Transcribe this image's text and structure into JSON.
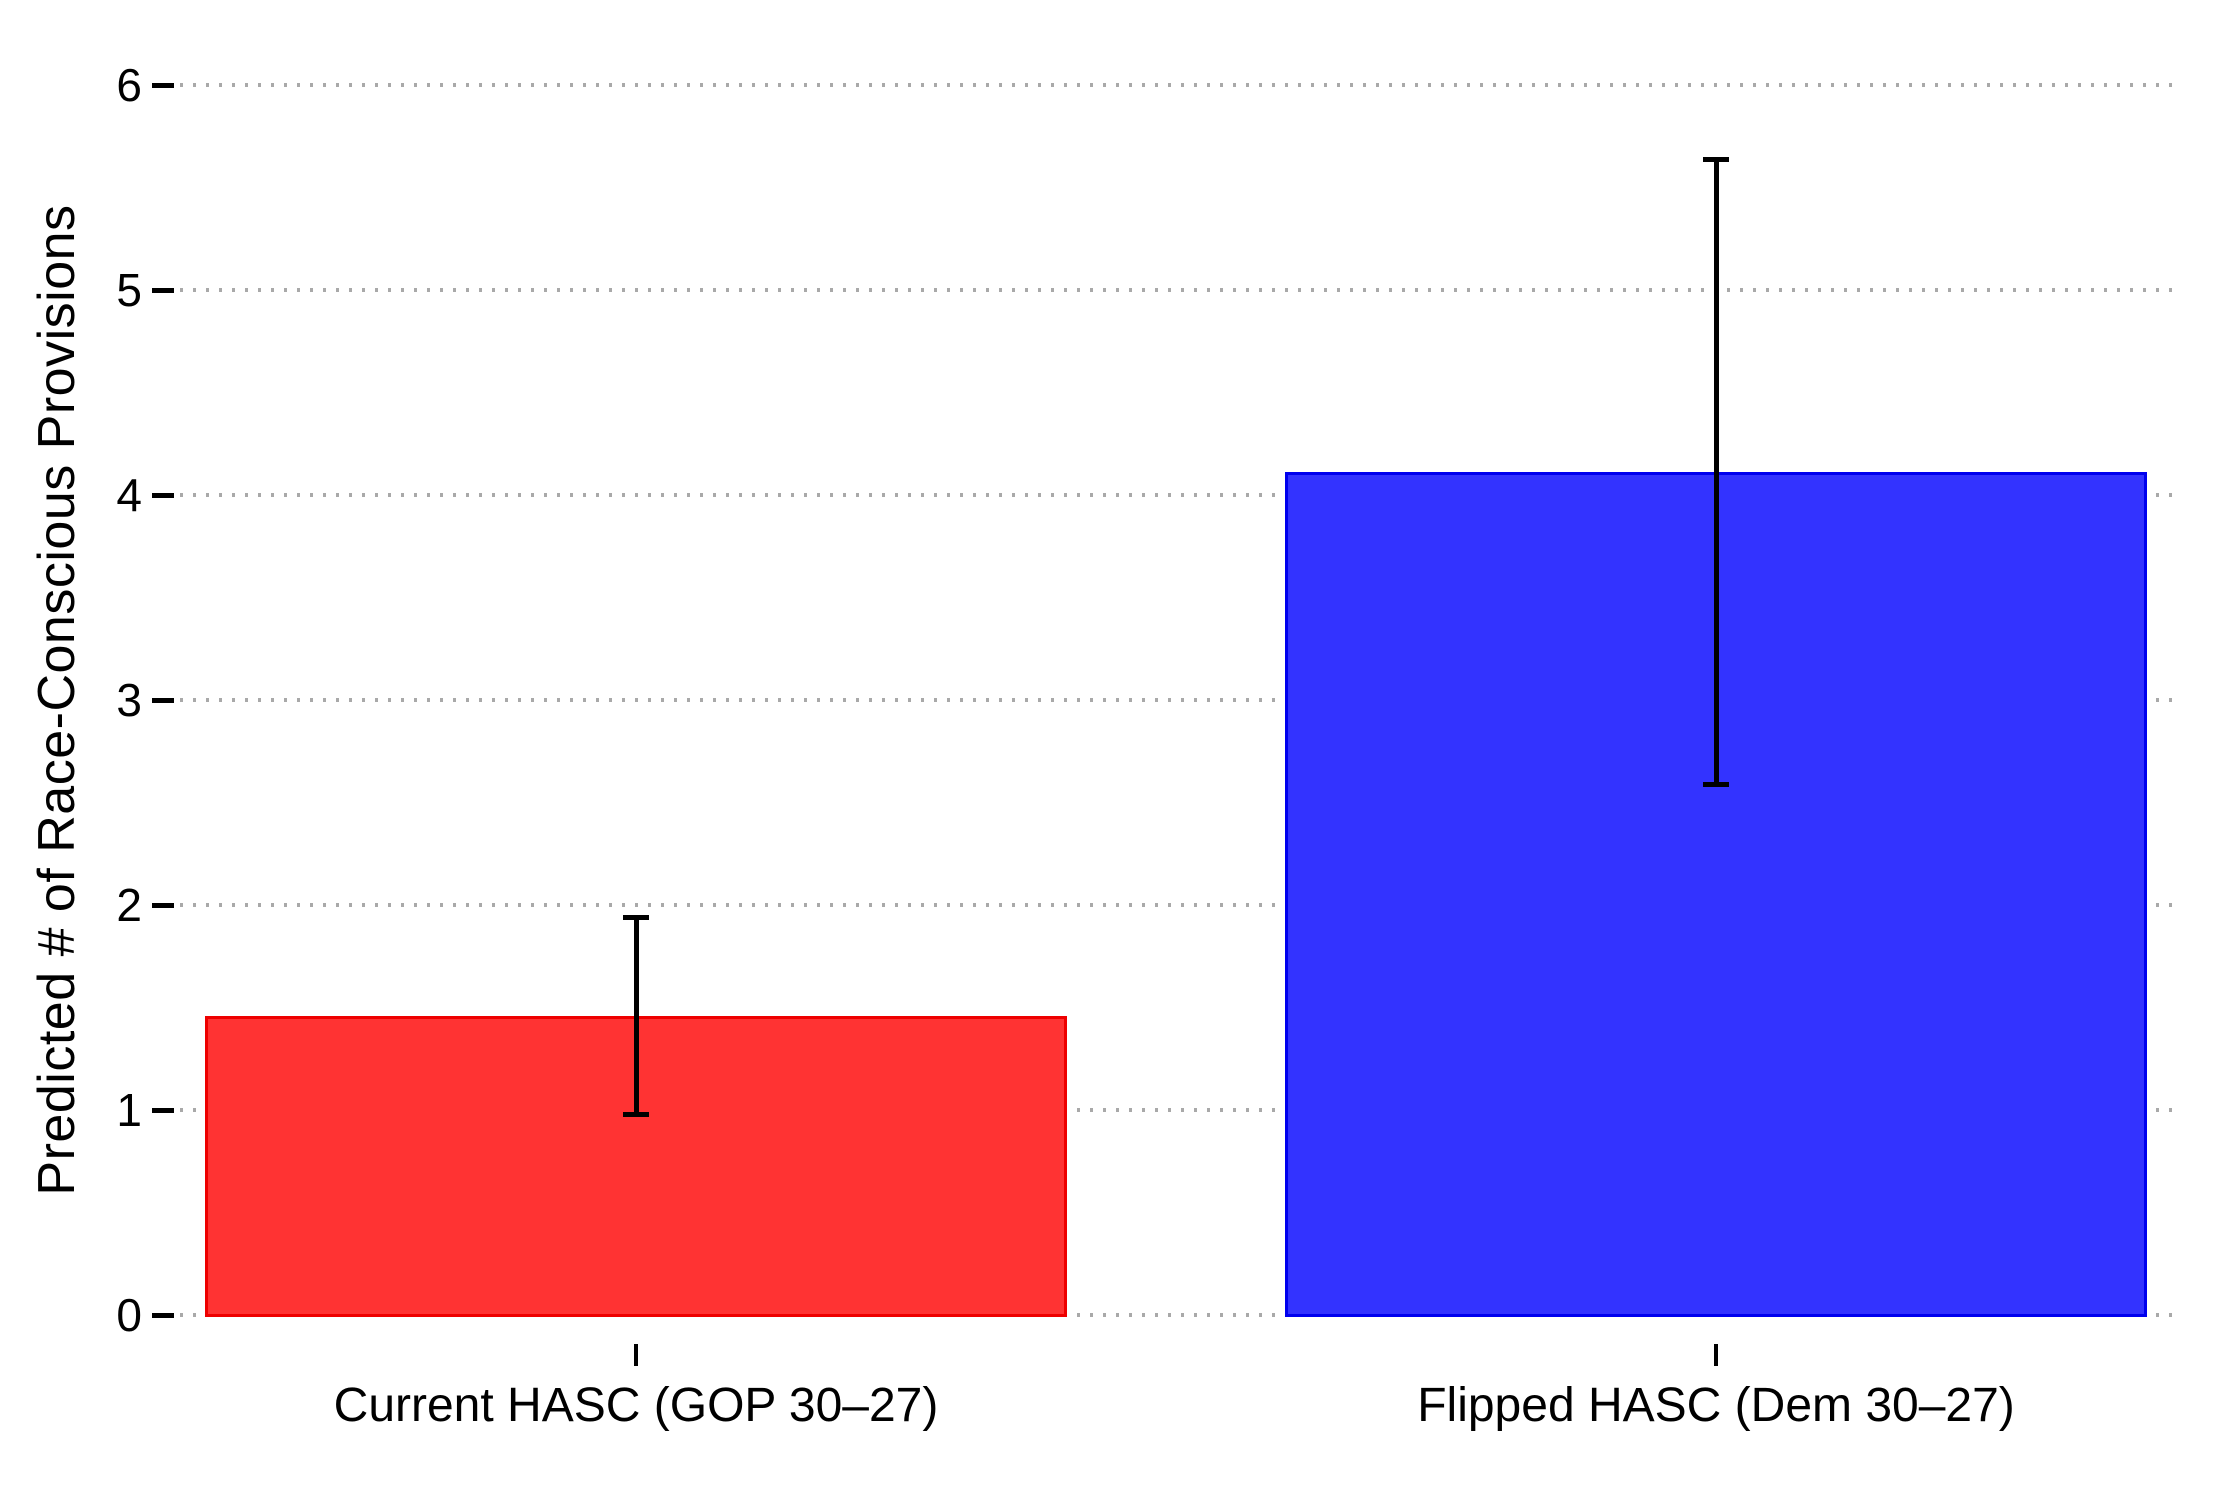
{
  "chart_data": {
    "type": "bar",
    "title": "",
    "xlabel": "",
    "ylabel": "Predicted # of Race-Conscious Provisions",
    "ylim": [
      0,
      6
    ],
    "yticks": [
      0,
      1,
      2,
      3,
      4,
      5,
      6
    ],
    "grid": "horizontal-dotted",
    "legend": "none",
    "categories": [
      "Current HASC (GOP 30–27)",
      "Flipped HASC (Dem 30–27)"
    ],
    "series": [
      {
        "name": "Predicted # of Race-Conscious Provisions",
        "values": [
          1.46,
          4.11
        ]
      }
    ],
    "error_bars": [
      {
        "low": 0.98,
        "high": 1.94
      },
      {
        "low": 2.59,
        "high": 5.64
      }
    ],
    "bar_fill_colors": [
      "#ff3333",
      "#3333ff"
    ],
    "bar_border_colors": [
      "#ee0000",
      "#0000ee"
    ],
    "grid_color": "#a9a9a9",
    "error_bar_color": "#000000",
    "text_color": "#000000"
  }
}
